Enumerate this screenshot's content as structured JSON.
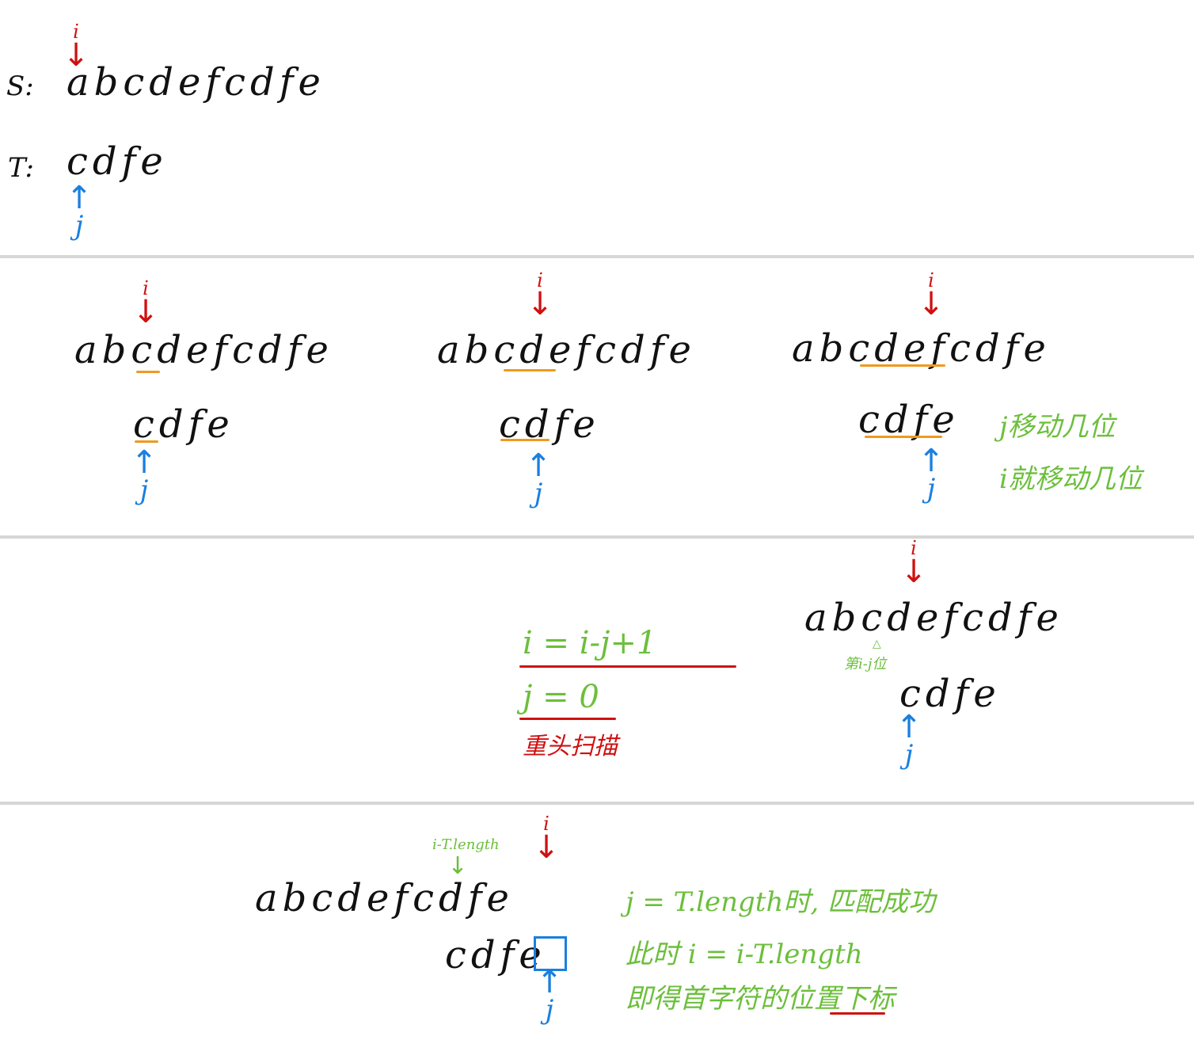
{
  "panel1": {
    "s_label": "S:",
    "t_label": "T:",
    "s_string": "abcdefcdfe",
    "t_string": "cdfe",
    "i_mark": "i",
    "j_mark": "j"
  },
  "panel2": {
    "steps": [
      {
        "s_string": "abcdefcdfe",
        "t_string": "cdfe",
        "i_mark": "i",
        "j_mark": "j"
      },
      {
        "s_string": "abcdefcdfe",
        "t_string": "cdfe",
        "i_mark": "i",
        "j_mark": "j"
      },
      {
        "s_string": "abcdefcdfe",
        "t_string": "cdfe",
        "i_mark": "i",
        "j_mark": "j"
      }
    ],
    "note_line1": "j移动几位",
    "note_line2": "i就移动几位"
  },
  "panel3": {
    "formula1": "i = i-j+1",
    "formula2": "j = 0",
    "rescan": "重头扫描",
    "s_string": "abcdefcdfe",
    "t_string": "cdfe",
    "i_mark": "i",
    "j_mark": "j",
    "pos_note": "第i-j位"
  },
  "panel4": {
    "s_string": "abcdefcdfe",
    "t_string": "cdfe",
    "i_mark": "i",
    "j_mark": "j",
    "start_label": "i-T.length",
    "note_line1": "j = T.length时, 匹配成功",
    "note_line2": "此时 i = i-T.length",
    "note_line3": "即得首字符的位置下标"
  }
}
